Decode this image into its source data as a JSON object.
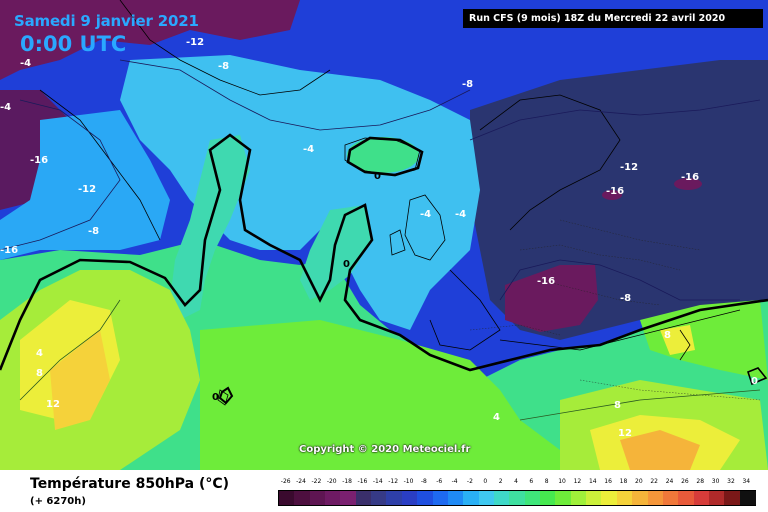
{
  "header": {
    "date": "Samedi 9 janvier 2021",
    "time": "0:00 UTC",
    "run": "Run CFS (9 mois) 18Z du Mercredi 22 avril 2020"
  },
  "footer": {
    "variable": "Température 850hPa (°C)",
    "lead": "(+ 6270h)",
    "copyright": "Copyright © 2020 Meteociel.fr"
  },
  "isotherm_labels": [
    {
      "text": "-12",
      "fill": "white"
    },
    {
      "text": "-8",
      "fill": "white"
    },
    {
      "text": "-4",
      "fill": "white"
    },
    {
      "text": "-16",
      "fill": "white"
    },
    {
      "text": "-12",
      "fill": "white"
    },
    {
      "text": "-8",
      "fill": "white"
    },
    {
      "text": "-8",
      "fill": "white"
    },
    {
      "text": "-4",
      "fill": "white"
    },
    {
      "text": "0",
      "fill": "black"
    },
    {
      "text": "-4",
      "fill": "white"
    },
    {
      "text": "-4",
      "fill": "white"
    },
    {
      "text": "-12",
      "fill": "white"
    },
    {
      "text": "-16",
      "fill": "white"
    },
    {
      "text": "-16",
      "fill": "white"
    },
    {
      "text": "-16",
      "fill": "white"
    },
    {
      "text": "-8",
      "fill": "white"
    },
    {
      "text": "0",
      "fill": "black"
    },
    {
      "text": "-16",
      "fill": "white"
    },
    {
      "text": "4",
      "fill": "white"
    },
    {
      "text": "8",
      "fill": "white"
    },
    {
      "text": "12",
      "fill": "white"
    },
    {
      "text": "0",
      "fill": "black"
    },
    {
      "text": "4",
      "fill": "white"
    },
    {
      "text": "8",
      "fill": "white"
    },
    {
      "text": "12",
      "fill": "white"
    },
    {
      "text": "8",
      "fill": "white"
    },
    {
      "text": "0",
      "fill": "white"
    },
    {
      "text": "-4",
      "fill": "white"
    }
  ],
  "legend": {
    "values": [
      "-26",
      "-24",
      "-22",
      "-20",
      "-18",
      "-16",
      "-14",
      "-12",
      "-10",
      "-8",
      "-6",
      "-4",
      "-2",
      "0",
      "2",
      "4",
      "6",
      "8",
      "10",
      "12",
      "14",
      "16",
      "18",
      "20",
      "22",
      "24",
      "26",
      "28",
      "30",
      "32",
      "34"
    ],
    "colors": [
      "#3a0a2e",
      "#4d0f3f",
      "#5e1552",
      "#6e1a63",
      "#7a2070",
      "#3a2f6b",
      "#363a86",
      "#2e3fa8",
      "#2a3ec4",
      "#1f4fe0",
      "#1e6af0",
      "#1f8af5",
      "#2ab0f5",
      "#3fc8f0",
      "#3fd9c8",
      "#3fe0a0",
      "#3fe67a",
      "#46e84f",
      "#6eec3a",
      "#9ff03a",
      "#cbf03a",
      "#ecee3a",
      "#f5d23a",
      "#f5b43a",
      "#f5963a",
      "#f0783a",
      "#e85a3a",
      "#d63c3a",
      "#b02a2a",
      "#7a1818",
      "#101010"
    ]
  }
}
